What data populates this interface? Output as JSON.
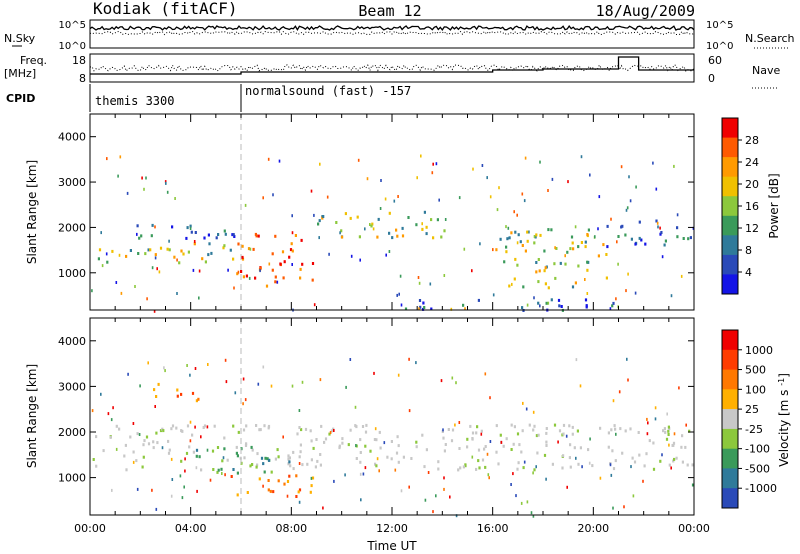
{
  "header": {
    "station": "Kodiak (fitACF)",
    "beam": "Beam 12",
    "date": "18/Aug/2009"
  },
  "strip_labels": {
    "nsky": "N.Sky",
    "nsearch": "N.Search",
    "freq_top": "Freq.",
    "freq_unit": "[MHz]",
    "nave": "Nave",
    "cpid": "CPID"
  },
  "strip_ticks": {
    "nsky_left": [
      "10^5",
      "10^0"
    ],
    "nsky_right": [
      "10^5",
      "10^0"
    ],
    "freq_left": [
      "18",
      "8"
    ],
    "nave_right": [
      "60",
      "0"
    ]
  },
  "cpid_segments": [
    {
      "label": "themis 3300",
      "start_hour": 0
    },
    {
      "label": "normalsound (fast) -157",
      "start_hour": 6
    }
  ],
  "chart_data": [
    {
      "type": "heatmap",
      "name": "power-panel",
      "ylabel": "Slant Range [km]",
      "xlabel": "",
      "ylim": [
        180,
        4500
      ],
      "xlim_hours": [
        0,
        24
      ],
      "y_ticks": [
        "1000",
        "2000",
        "3000",
        "4000"
      ],
      "colorbar_label": "Power [dB]",
      "colorbar_ticks": [
        "28",
        "24",
        "20",
        "16",
        "12",
        "8",
        "4"
      ],
      "colorbar_colors": [
        "#1414e6",
        "#2a4ab8",
        "#2f7a9a",
        "#3a9a5a",
        "#8cc83c",
        "#f0c000",
        "#ff9a00",
        "#ff5a00",
        "#f00000"
      ],
      "bands": [
        {
          "t0": 0.0,
          "t1": 5.8,
          "r0": 1250,
          "r1": 1700,
          "level": "mid"
        },
        {
          "t0": 1.5,
          "t1": 6.0,
          "r0": 1700,
          "r1": 2100,
          "level": "low"
        },
        {
          "t0": 5.8,
          "t1": 9.0,
          "r0": 700,
          "r1": 1300,
          "level": "high"
        },
        {
          "t0": 5.8,
          "t1": 8.5,
          "r0": 1300,
          "r1": 1900,
          "level": "high"
        },
        {
          "t0": 9.0,
          "t1": 14.2,
          "r0": 1800,
          "r1": 2400,
          "level": "mid"
        },
        {
          "t0": 16.0,
          "t1": 20.5,
          "r0": 700,
          "r1": 2000,
          "level": "mid"
        },
        {
          "t0": 20.5,
          "t1": 24.0,
          "r0": 1600,
          "r1": 2200,
          "level": "low"
        },
        {
          "t0": 12.0,
          "t1": 20.8,
          "r0": 200,
          "r1": 450,
          "level": "low"
        }
      ]
    },
    {
      "type": "heatmap",
      "name": "velocity-panel",
      "ylabel": "Slant Range [km]",
      "xlabel": "Time UT",
      "ylim": [
        180,
        4500
      ],
      "xlim_hours": [
        0,
        24
      ],
      "y_ticks": [
        "1000",
        "2000",
        "3000",
        "4000"
      ],
      "x_ticks": [
        "00:00",
        "04:00",
        "08:00",
        "12:00",
        "16:00",
        "20:00",
        "00:00"
      ],
      "colorbar_label": "Velocity [m s^-1]",
      "colorbar_ticks": [
        "1000",
        "500",
        "100",
        "25",
        "-25",
        "-100",
        "-500",
        "-1000"
      ],
      "colorbar_colors": [
        "#2a4ab8",
        "#2f7a9a",
        "#3a9a5a",
        "#8cc83c",
        "#c8c8c8",
        "#ffb000",
        "#ff7800",
        "#ff3c00",
        "#f00000"
      ],
      "bands": [
        {
          "t0": 0.0,
          "t1": 24.0,
          "r0": 1200,
          "r1": 2200,
          "level": "gray"
        },
        {
          "t0": 3.5,
          "t1": 8.0,
          "r0": 1100,
          "r1": 1700,
          "level": "green"
        },
        {
          "t0": 5.5,
          "t1": 9.0,
          "r0": 600,
          "r1": 1100,
          "level": "orange"
        },
        {
          "t0": 2.5,
          "t1": 4.5,
          "r0": 2700,
          "r1": 3100,
          "level": "orange"
        }
      ]
    }
  ]
}
